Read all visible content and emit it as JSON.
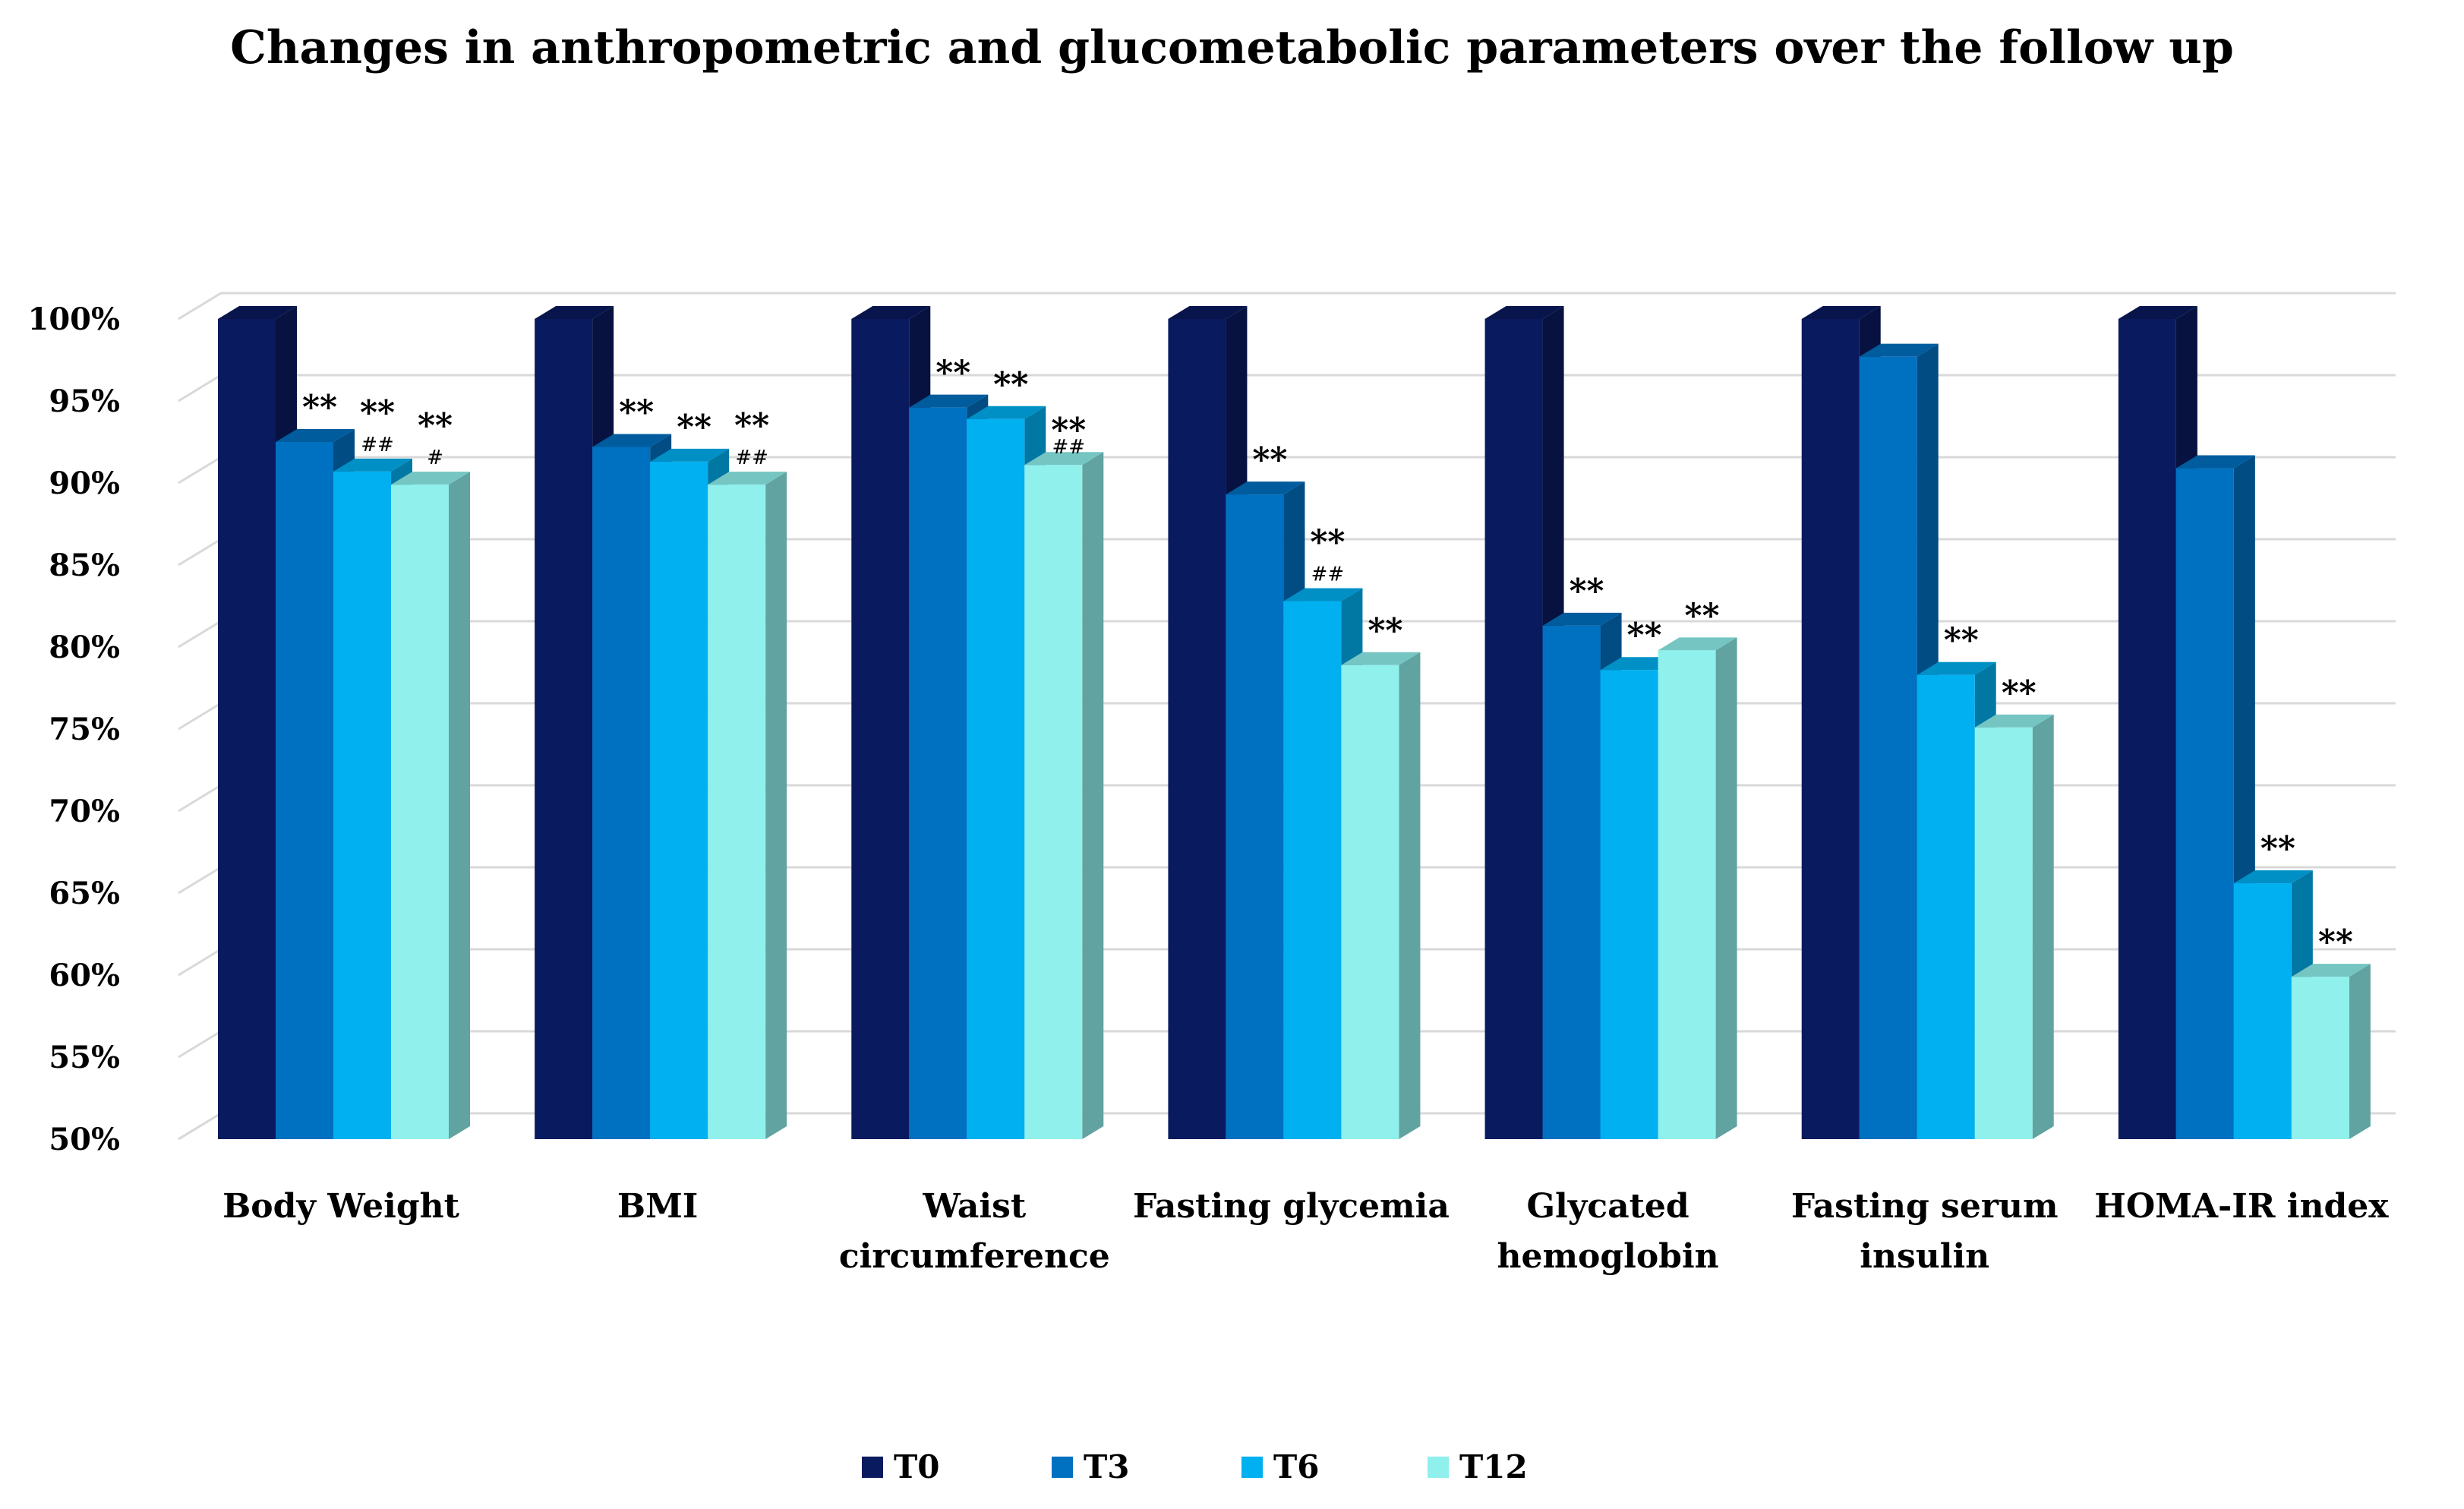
{
  "chart_data": {
    "type": "bar",
    "title": "Changes in anthropometric and glucometabolic parameters over the follow up",
    "categories": [
      [
        "Body Weight"
      ],
      [
        "BMI"
      ],
      [
        "Waist",
        "circumference"
      ],
      [
        "Fasting glycemia"
      ],
      [
        "Glycated",
        "hemoglobin"
      ],
      [
        "Fasting serum",
        "insulin"
      ],
      [
        "HOMA-IR index"
      ]
    ],
    "series": [
      {
        "name": "T0",
        "color": "#0a1a5e",
        "values": [
          100,
          100,
          100,
          100,
          100,
          100,
          100
        ]
      },
      {
        "name": "T3",
        "color": "#0070c0",
        "values": [
          92.5,
          92.2,
          94.6,
          89.3,
          81.3,
          97.7,
          90.9
        ]
      },
      {
        "name": "T6",
        "color": "#00b0f0",
        "values": [
          90.7,
          91.3,
          93.9,
          82.8,
          78.6,
          78.3,
          65.6
        ]
      },
      {
        "name": "T12",
        "color": "#8ff0ec",
        "values": [
          89.9,
          89.9,
          91.1,
          78.9,
          79.8,
          75.1,
          59.9
        ]
      }
    ],
    "annotations": [
      [
        [],
        [
          "**"
        ],
        [
          "**",
          "##"
        ],
        [
          "**",
          "#"
        ]
      ],
      [
        [],
        [
          "**"
        ],
        [
          "**"
        ],
        [
          "**",
          "##"
        ]
      ],
      [
        [],
        [],
        [
          "**"
        ],
        [
          "**"
        ]
      ],
      [
        [],
        [
          "**"
        ],
        [
          "**",
          "##"
        ],
        [
          "**"
        ]
      ],
      [
        [],
        [
          "**"
        ],
        [
          "**"
        ],
        [
          "**"
        ]
      ],
      [
        [],
        [],
        [
          "**"
        ],
        [
          "**"
        ]
      ],
      [
        [],
        [],
        [
          "**"
        ],
        [
          "**"
        ]
      ]
    ],
    "annotations_extra": [
      [
        null,
        null,
        null,
        null
      ],
      [
        null,
        null,
        null,
        null
      ],
      [
        null,
        "**",
        "**",
        "##"
      ],
      [
        null,
        null,
        null,
        null
      ],
      [
        null,
        null,
        null,
        null
      ],
      [
        null,
        null,
        null,
        null
      ],
      [
        null,
        null,
        null,
        null
      ]
    ],
    "yticks": [
      "50%",
      "55%",
      "60%",
      "65%",
      "70%",
      "75%",
      "80%",
      "85%",
      "90%",
      "95%",
      "100%"
    ],
    "ylim": [
      50,
      100
    ],
    "grid": true,
    "legend_position": "bottom"
  }
}
